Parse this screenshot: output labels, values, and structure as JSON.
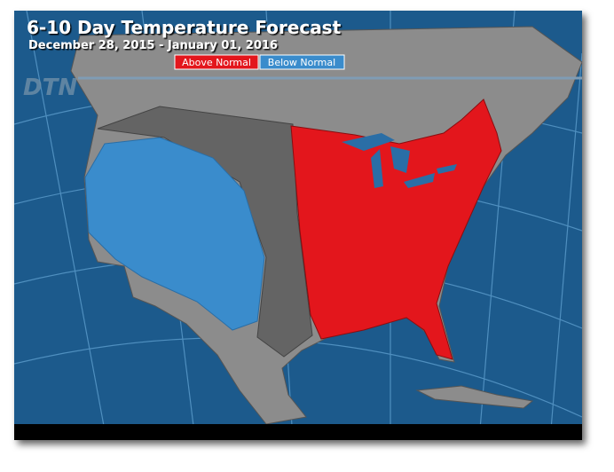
{
  "header": {
    "title": "6-10 Day Temperature Forecast",
    "subtitle": "December 28, 2015 - January 01, 2016"
  },
  "legend": [
    {
      "label": "Above Normal",
      "color": "#e3161c"
    },
    {
      "label": "Below Normal",
      "color": "#3a8ccc"
    }
  ],
  "logo": "DTN"
}
